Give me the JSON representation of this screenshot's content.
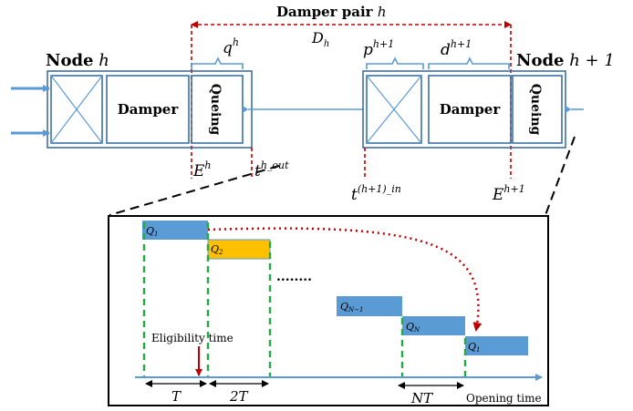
{
  "top": {
    "damper_pair_label": "Damper pair",
    "damper_pair_var": "h",
    "node_left_label": "Node",
    "node_left_var": "h",
    "node_right_label": "Node",
    "node_right_var": "h + 1",
    "damper_label": "Damper",
    "queuing_label": "Queing",
    "q_label": "q",
    "q_sup": "h",
    "D_label": "D",
    "D_sub": "h",
    "p_label": "p",
    "p_sup": "h+1",
    "d_label": "d",
    "d_sup": "h+1",
    "E_left": "E",
    "E_left_sup": "h",
    "t_out": "t",
    "t_out_sup": "h_out",
    "t_in": "t",
    "t_in_sup": "(h+1)_in",
    "E_right": "E",
    "E_right_sup": "h+1"
  },
  "inset": {
    "packets": [
      {
        "label": "Q",
        "sub": "1",
        "color": "#5b9bd5"
      },
      {
        "label": "Q",
        "sub": "2",
        "color": "#ffc000"
      },
      {
        "label": "Q",
        "sub": "N−1",
        "color": "#5b9bd5"
      },
      {
        "label": "Q",
        "sub": "N",
        "color": "#5b9bd5"
      },
      {
        "label": "Q",
        "sub": "1",
        "color": "#5b9bd5"
      }
    ],
    "ellipsis": "........",
    "eligibility_label": "Eligibility time",
    "T_label": "T",
    "T2_label": "2T",
    "NT_label": "NT",
    "axis_label": "Opening time"
  },
  "colors": {
    "box_stroke": "#3f6fa3",
    "line_blue": "#5b9bd5",
    "red": "#c00000",
    "green": "#22aa44",
    "yellow": "#ffc000"
  }
}
